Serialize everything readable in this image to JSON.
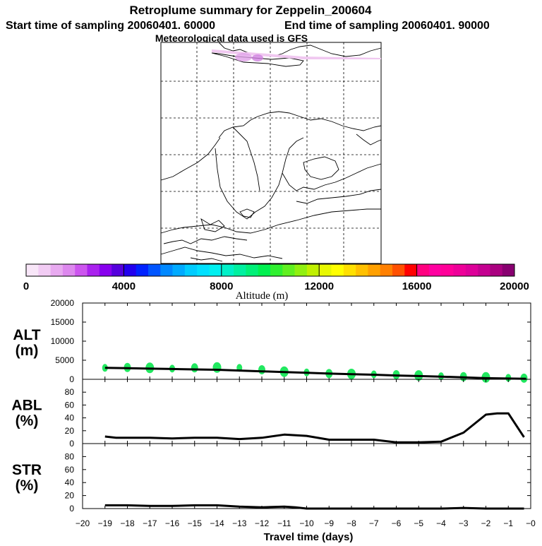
{
  "header": {
    "title": "Retroplume summary for Zeppelin_200604",
    "start_label": "Start time of sampling 20060401. 60000",
    "end_label": "End time of sampling 20060401. 90000",
    "met_label": "Meteorological data used is GFS"
  },
  "colorbar": {
    "label": "Altitude (m)",
    "tick_labels": [
      "0",
      "4000",
      "8000",
      "12000",
      "16000",
      "20000"
    ],
    "colors": [
      "#f8e6f8",
      "#f2ccf4",
      "#e8aaf0",
      "#dd88ee",
      "#cc55ee",
      "#aa22ee",
      "#8800ee",
      "#5500dd",
      "#2200ee",
      "#0022ff",
      "#0055ff",
      "#0088ff",
      "#00aaff",
      "#00ccff",
      "#00e0ff",
      "#00f0f0",
      "#00f0c8",
      "#00f0a0",
      "#00f078",
      "#00f050",
      "#30f030",
      "#60f020",
      "#90f010",
      "#c0f000",
      "#e8f800",
      "#ffff00",
      "#ffe000",
      "#ffc000",
      "#ffa000",
      "#ff8000",
      "#ff5000",
      "#ff0000",
      "#ff0080",
      "#ff00a0",
      "#ff0099",
      "#ee0099",
      "#dd0099",
      "#c40090",
      "#aa0080",
      "#880070"
    ]
  },
  "chart_data": [
    {
      "panel": "ALT",
      "type": "scatter+line",
      "ylabel": "ALT\n(m)",
      "ylabel_lines": [
        "ALT",
        "(m)"
      ],
      "ylim": [
        0,
        20000
      ],
      "yticks": [
        0,
        5000,
        10000,
        15000,
        20000
      ],
      "ytick_labels": [
        "0",
        "5000",
        "10000",
        "15000",
        "20000"
      ],
      "line_x": [
        -19,
        -18,
        -17,
        -16,
        -15,
        -14,
        -13,
        -12,
        -11,
        -10,
        -9,
        -8,
        -7,
        -6,
        -5,
        -4,
        -3,
        -2,
        -1,
        -0.2
      ],
      "line_y": [
        3000,
        2900,
        2800,
        2700,
        2600,
        2500,
        2300,
        2100,
        1900,
        1700,
        1500,
        1350,
        1200,
        1000,
        850,
        700,
        500,
        300,
        200,
        150
      ],
      "points": [
        {
          "x": -19.0,
          "y": 3000
        },
        {
          "x": -18.0,
          "y": 3100
        },
        {
          "x": -17.0,
          "y": 3000
        },
        {
          "x": -16.0,
          "y": 2800
        },
        {
          "x": -15.0,
          "y": 3000
        },
        {
          "x": -14.0,
          "y": 3100
        },
        {
          "x": -13.0,
          "y": 3000
        },
        {
          "x": -12.0,
          "y": 2500
        },
        {
          "x": -11.0,
          "y": 2000
        },
        {
          "x": -10.0,
          "y": 1800
        },
        {
          "x": -9.0,
          "y": 1500
        },
        {
          "x": -8.0,
          "y": 1400
        },
        {
          "x": -7.0,
          "y": 1300
        },
        {
          "x": -6.0,
          "y": 1200
        },
        {
          "x": -5.0,
          "y": 1000
        },
        {
          "x": -4.0,
          "y": 800
        },
        {
          "x": -3.0,
          "y": 700
        },
        {
          "x": -2.0,
          "y": 500
        },
        {
          "x": -1.0,
          "y": 400
        },
        {
          "x": -0.3,
          "y": 300
        }
      ]
    },
    {
      "panel": "ABL",
      "type": "line",
      "ylabel_lines": [
        "ABL",
        "(%)"
      ],
      "ylim": [
        0,
        100
      ],
      "yticks": [
        0,
        20,
        40,
        60,
        80
      ],
      "ytick_labels": [
        "0",
        "20",
        "40",
        "60",
        "80"
      ],
      "x": [
        -19,
        -18.5,
        -18,
        -17,
        -16,
        -15,
        -14,
        -13,
        -12,
        -11,
        -10,
        -9,
        -8,
        -7,
        -6,
        -5,
        -4,
        -3,
        -2,
        -1.5,
        -1,
        -0.3
      ],
      "y": [
        11,
        9,
        9,
        9,
        8,
        9,
        9,
        7,
        9,
        14,
        12,
        6,
        6,
        6,
        2,
        2,
        3,
        17,
        45,
        47,
        47,
        10
      ]
    },
    {
      "panel": "STR",
      "type": "line",
      "ylabel_lines": [
        "STR",
        "(%)"
      ],
      "ylim": [
        0,
        100
      ],
      "yticks": [
        0,
        20,
        40,
        60,
        80
      ],
      "ytick_labels": [
        "0",
        "20",
        "40",
        "60",
        "80"
      ],
      "x": [
        -19,
        -18,
        -17,
        -16,
        -15,
        -14,
        -13,
        -12,
        -11,
        -10.5,
        -10,
        -9,
        -8,
        -7,
        -6,
        -5,
        -4,
        -3,
        -2,
        -1,
        -0.3
      ],
      "y": [
        5,
        5,
        4,
        4,
        5,
        5,
        3,
        2,
        3,
        2,
        0,
        0,
        0,
        0,
        0,
        0,
        0,
        1,
        0,
        0,
        0
      ]
    }
  ],
  "xaxis": {
    "label": "Travel time (days)",
    "xlim": [
      -20,
      0
    ],
    "ticks": [
      -20,
      -19,
      -18,
      -17,
      -16,
      -15,
      -14,
      -13,
      -12,
      -11,
      -10,
      -9,
      -8,
      -7,
      -6,
      -5,
      -4,
      -3,
      -2,
      -1,
      0
    ],
    "tick_labels": [
      "−20",
      "−19",
      "−18",
      "−17",
      "−16",
      "−15",
      "−14",
      "−13",
      "−12",
      "−11",
      "−10",
      "−9",
      "−8",
      "−7",
      "−6",
      "−5",
      "−4",
      "−3",
      "−2",
      "−1",
      "−0"
    ]
  }
}
